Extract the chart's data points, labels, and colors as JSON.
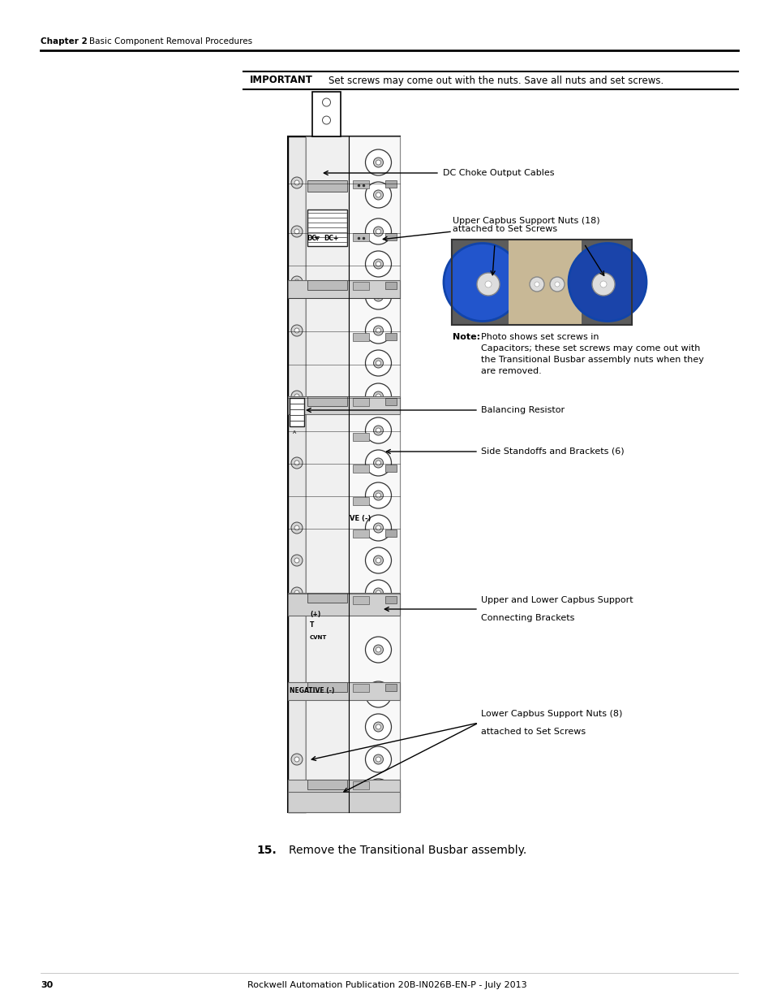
{
  "page_width": 9.54,
  "page_height": 12.35,
  "bg_color": "#ffffff",
  "header_chapter": "Chapter 2",
  "header_title": "Basic Component Removal Procedures",
  "footer_page": "30",
  "footer_center": "Rockwell Automation Publication 20B-IN026B-EN-P - July 2013",
  "important_label": "IMPORTANT",
  "important_text": "Set screws may come out with the nuts. Save all nuts and set screws.",
  "step15_num": "15.",
  "step15_text": "Remove the Transitional Busbar assembly.",
  "note_bold": "Note:",
  "note_rest": " Photo shows set screws in\nCapacitors; these set screws may come out with\nthe Transitional Busbar assembly nuts when they\nare removed.",
  "callout_dc_choke": "DC Choke Output Cables",
  "callout_upper_nuts_1": "Upper Capbus Support Nuts (18)",
  "callout_upper_nuts_2": "attached to Set Screws",
  "callout_standoffs": "Side Standoffs and Brackets (6)",
  "callout_resistor": "Balancing Resistor",
  "callout_brackets_1": "Upper and Lower Capbus Support",
  "callout_brackets_2": "Connecting Brackets",
  "callout_lower_nuts_1": "Lower Capbus Support Nuts (8)",
  "callout_lower_nuts_2": "attached to Set Screws"
}
